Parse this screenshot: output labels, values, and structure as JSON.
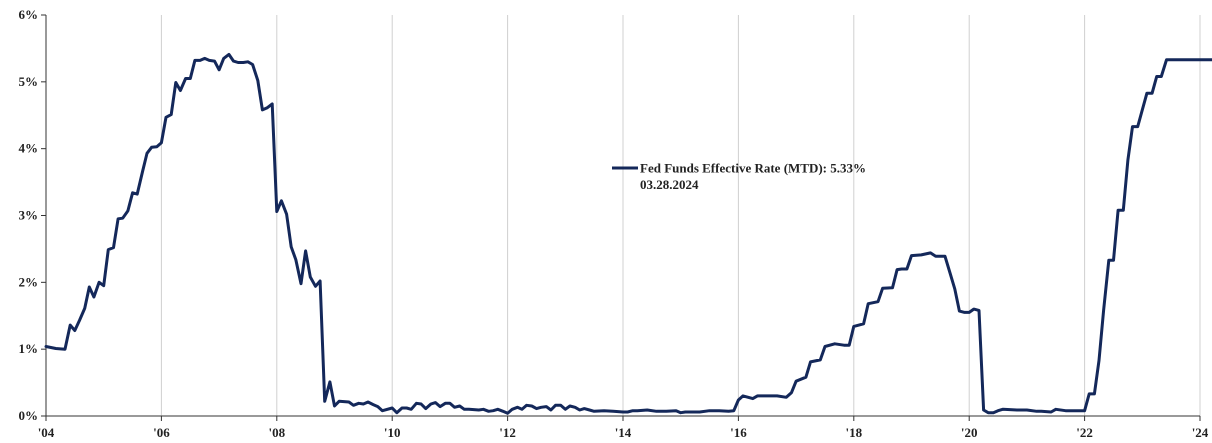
{
  "chart_data": {
    "type": "line",
    "title": "",
    "xlabel": "",
    "ylabel": "",
    "xlim": [
      2004.0,
      2024.25
    ],
    "ylim": [
      0,
      6
    ],
    "grid": {
      "vertical": true,
      "horizontal": false
    },
    "x_ticks": [
      {
        "value": 2004,
        "label": "'04"
      },
      {
        "value": 2006,
        "label": "'06"
      },
      {
        "value": 2008,
        "label": "'08"
      },
      {
        "value": 2010,
        "label": "'10"
      },
      {
        "value": 2012,
        "label": "'12"
      },
      {
        "value": 2014,
        "label": "'14"
      },
      {
        "value": 2016,
        "label": "'16"
      },
      {
        "value": 2018,
        "label": "'18"
      },
      {
        "value": 2020,
        "label": "'20"
      },
      {
        "value": 2022,
        "label": "'22"
      },
      {
        "value": 2024,
        "label": "'24"
      }
    ],
    "y_ticks": [
      {
        "value": 0,
        "label": "0%"
      },
      {
        "value": 1,
        "label": "1%"
      },
      {
        "value": 2,
        "label": "2%"
      },
      {
        "value": 3,
        "label": "3%"
      },
      {
        "value": 4,
        "label": "4%"
      },
      {
        "value": 5,
        "label": "5%"
      },
      {
        "value": 6,
        "label": "6%"
      }
    ],
    "legend": {
      "label": "Fed Funds Effective Rate (MTD): 5.33%",
      "sublabel": "03.28.2024",
      "position": "center"
    },
    "series": [
      {
        "name": "Fed Funds Effective Rate (MTD)",
        "color": "#14285a",
        "points": [
          [
            2004.0,
            1.04
          ],
          [
            2004.17,
            1.01
          ],
          [
            2004.33,
            1.0
          ],
          [
            2004.42,
            1.36
          ],
          [
            2004.5,
            1.28
          ],
          [
            2004.58,
            1.43
          ],
          [
            2004.67,
            1.61
          ],
          [
            2004.75,
            1.93
          ],
          [
            2004.83,
            1.78
          ],
          [
            2004.92,
            2.0
          ],
          [
            2005.0,
            1.95
          ],
          [
            2005.08,
            2.49
          ],
          [
            2005.17,
            2.52
          ],
          [
            2005.25,
            2.95
          ],
          [
            2005.33,
            2.96
          ],
          [
            2005.42,
            3.07
          ],
          [
            2005.5,
            3.34
          ],
          [
            2005.58,
            3.32
          ],
          [
            2005.67,
            3.65
          ],
          [
            2005.75,
            3.93
          ],
          [
            2005.83,
            4.02
          ],
          [
            2005.92,
            4.03
          ],
          [
            2006.0,
            4.09
          ],
          [
            2006.08,
            4.47
          ],
          [
            2006.17,
            4.51
          ],
          [
            2006.25,
            4.99
          ],
          [
            2006.33,
            4.87
          ],
          [
            2006.42,
            5.05
          ],
          [
            2006.5,
            5.05
          ],
          [
            2006.58,
            5.32
          ],
          [
            2006.67,
            5.32
          ],
          [
            2006.75,
            5.35
          ],
          [
            2006.83,
            5.32
          ],
          [
            2006.92,
            5.31
          ],
          [
            2007.0,
            5.18
          ],
          [
            2007.08,
            5.35
          ],
          [
            2007.17,
            5.41
          ],
          [
            2007.25,
            5.31
          ],
          [
            2007.33,
            5.29
          ],
          [
            2007.42,
            5.29
          ],
          [
            2007.5,
            5.3
          ],
          [
            2007.58,
            5.26
          ],
          [
            2007.67,
            5.02
          ],
          [
            2007.75,
            4.58
          ],
          [
            2007.83,
            4.61
          ],
          [
            2007.92,
            4.67
          ],
          [
            2008.0,
            3.06
          ],
          [
            2008.08,
            3.22
          ],
          [
            2008.17,
            3.02
          ],
          [
            2008.25,
            2.53
          ],
          [
            2008.33,
            2.34
          ],
          [
            2008.42,
            1.98
          ],
          [
            2008.5,
            2.47
          ],
          [
            2008.58,
            2.08
          ],
          [
            2008.67,
            1.94
          ],
          [
            2008.75,
            2.02
          ],
          [
            2008.83,
            0.22
          ],
          [
            2008.92,
            0.51
          ],
          [
            2009.0,
            0.15
          ],
          [
            2009.08,
            0.22
          ],
          [
            2009.25,
            0.21
          ],
          [
            2009.33,
            0.16
          ],
          [
            2009.42,
            0.19
          ],
          [
            2009.5,
            0.18
          ],
          [
            2009.58,
            0.21
          ],
          [
            2009.67,
            0.17
          ],
          [
            2009.75,
            0.14
          ],
          [
            2009.83,
            0.08
          ],
          [
            2010.0,
            0.12
          ],
          [
            2010.08,
            0.05
          ],
          [
            2010.17,
            0.12
          ],
          [
            2010.25,
            0.12
          ],
          [
            2010.33,
            0.1
          ],
          [
            2010.42,
            0.19
          ],
          [
            2010.5,
            0.18
          ],
          [
            2010.58,
            0.11
          ],
          [
            2010.67,
            0.18
          ],
          [
            2010.75,
            0.2
          ],
          [
            2010.83,
            0.14
          ],
          [
            2010.92,
            0.19
          ],
          [
            2011.0,
            0.19
          ],
          [
            2011.08,
            0.13
          ],
          [
            2011.17,
            0.15
          ],
          [
            2011.25,
            0.1
          ],
          [
            2011.33,
            0.1
          ],
          [
            2011.5,
            0.09
          ],
          [
            2011.58,
            0.1
          ],
          [
            2011.67,
            0.07
          ],
          [
            2011.75,
            0.08
          ],
          [
            2011.83,
            0.1
          ],
          [
            2011.92,
            0.07
          ],
          [
            2012.0,
            0.04
          ],
          [
            2012.08,
            0.1
          ],
          [
            2012.17,
            0.13
          ],
          [
            2012.25,
            0.1
          ],
          [
            2012.33,
            0.16
          ],
          [
            2012.42,
            0.15
          ],
          [
            2012.5,
            0.11
          ],
          [
            2012.58,
            0.13
          ],
          [
            2012.67,
            0.14
          ],
          [
            2012.75,
            0.09
          ],
          [
            2012.83,
            0.16
          ],
          [
            2012.92,
            0.16
          ],
          [
            2013.0,
            0.1
          ],
          [
            2013.08,
            0.15
          ],
          [
            2013.17,
            0.13
          ],
          [
            2013.25,
            0.09
          ],
          [
            2013.33,
            0.11
          ],
          [
            2013.42,
            0.09
          ],
          [
            2013.5,
            0.07
          ],
          [
            2013.67,
            0.08
          ],
          [
            2013.83,
            0.07
          ],
          [
            2014.0,
            0.06
          ],
          [
            2014.08,
            0.06
          ],
          [
            2014.17,
            0.08
          ],
          [
            2014.25,
            0.08
          ],
          [
            2014.42,
            0.09
          ],
          [
            2014.58,
            0.07
          ],
          [
            2014.75,
            0.07
          ],
          [
            2014.92,
            0.08
          ],
          [
            2015.0,
            0.05
          ],
          [
            2015.08,
            0.06
          ],
          [
            2015.33,
            0.06
          ],
          [
            2015.5,
            0.08
          ],
          [
            2015.67,
            0.08
          ],
          [
            2015.83,
            0.07
          ],
          [
            2015.92,
            0.08
          ],
          [
            2016.0,
            0.24
          ],
          [
            2016.08,
            0.3
          ],
          [
            2016.17,
            0.28
          ],
          [
            2016.25,
            0.26
          ],
          [
            2016.33,
            0.3
          ],
          [
            2016.5,
            0.3
          ],
          [
            2016.67,
            0.3
          ],
          [
            2016.83,
            0.28
          ],
          [
            2016.92,
            0.35
          ],
          [
            2017.0,
            0.52
          ],
          [
            2017.17,
            0.58
          ],
          [
            2017.25,
            0.81
          ],
          [
            2017.42,
            0.84
          ],
          [
            2017.5,
            1.04
          ],
          [
            2017.67,
            1.08
          ],
          [
            2017.83,
            1.06
          ],
          [
            2017.92,
            1.06
          ],
          [
            2018.0,
            1.34
          ],
          [
            2018.17,
            1.38
          ],
          [
            2018.25,
            1.68
          ],
          [
            2018.42,
            1.71
          ],
          [
            2018.5,
            1.91
          ],
          [
            2018.67,
            1.92
          ],
          [
            2018.75,
            2.19
          ],
          [
            2018.83,
            2.2
          ],
          [
            2018.92,
            2.2
          ],
          [
            2019.0,
            2.4
          ],
          [
            2019.17,
            2.41
          ],
          [
            2019.33,
            2.44
          ],
          [
            2019.42,
            2.39
          ],
          [
            2019.58,
            2.39
          ],
          [
            2019.67,
            2.13
          ],
          [
            2019.75,
            1.9
          ],
          [
            2019.83,
            1.57
          ],
          [
            2019.92,
            1.55
          ],
          [
            2020.0,
            1.55
          ],
          [
            2020.08,
            1.6
          ],
          [
            2020.17,
            1.58
          ],
          [
            2020.25,
            0.09
          ],
          [
            2020.33,
            0.05
          ],
          [
            2020.42,
            0.05
          ],
          [
            2020.5,
            0.08
          ],
          [
            2020.58,
            0.1
          ],
          [
            2020.83,
            0.09
          ],
          [
            2021.0,
            0.09
          ],
          [
            2021.17,
            0.07
          ],
          [
            2021.25,
            0.07
          ],
          [
            2021.42,
            0.06
          ],
          [
            2021.5,
            0.1
          ],
          [
            2021.67,
            0.08
          ],
          [
            2021.83,
            0.08
          ],
          [
            2021.92,
            0.08
          ],
          [
            2022.0,
            0.08
          ],
          [
            2022.08,
            0.33
          ],
          [
            2022.17,
            0.33
          ],
          [
            2022.25,
            0.83
          ],
          [
            2022.33,
            1.58
          ],
          [
            2022.42,
            2.33
          ],
          [
            2022.5,
            2.33
          ],
          [
            2022.58,
            3.08
          ],
          [
            2022.67,
            3.08
          ],
          [
            2022.75,
            3.83
          ],
          [
            2022.83,
            4.33
          ],
          [
            2022.92,
            4.33
          ],
          [
            2023.0,
            4.58
          ],
          [
            2023.08,
            4.83
          ],
          [
            2023.17,
            4.83
          ],
          [
            2023.25,
            5.08
          ],
          [
            2023.33,
            5.08
          ],
          [
            2023.42,
            5.33
          ],
          [
            2024.25,
            5.33
          ]
        ]
      }
    ]
  }
}
